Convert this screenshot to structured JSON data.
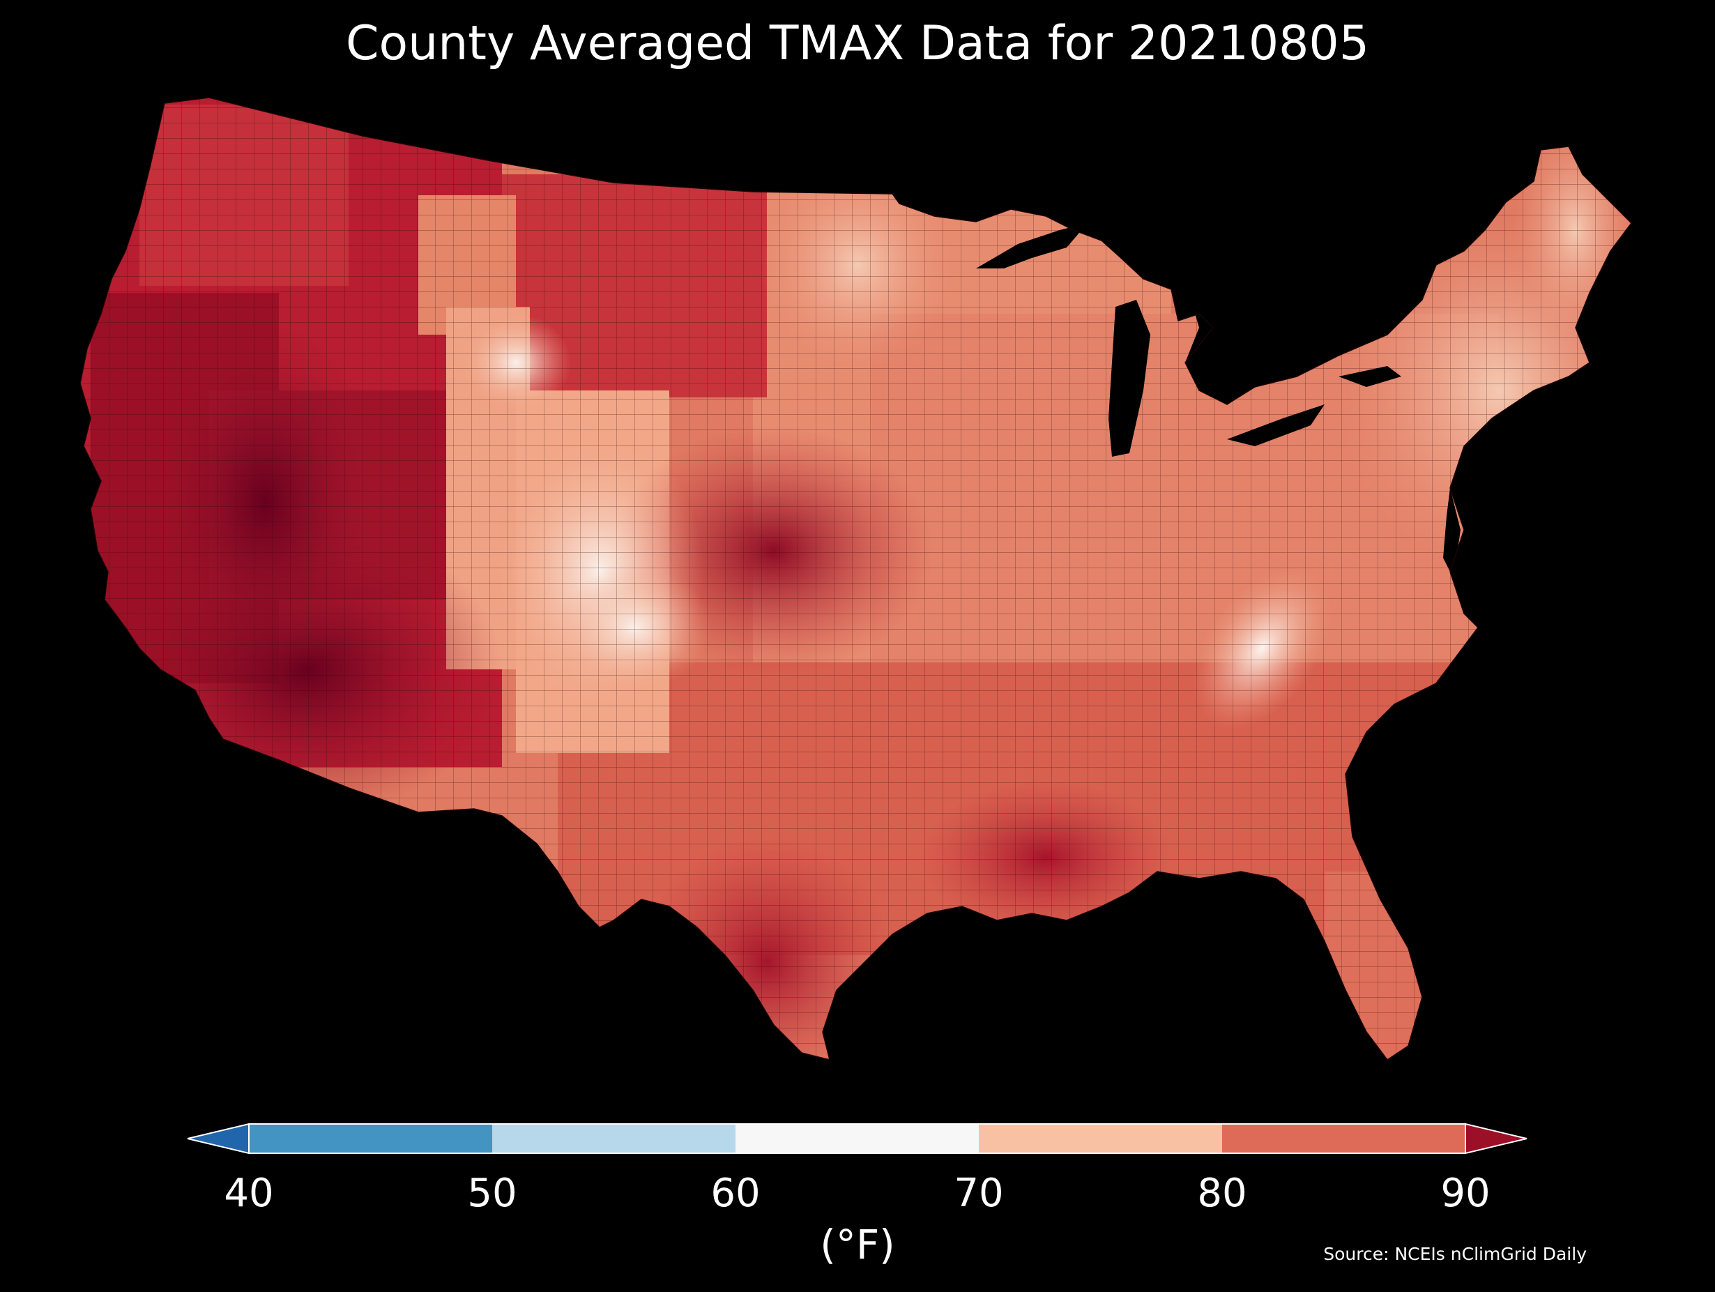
{
  "title": "County Averaged TMAX Data for 20210805",
  "colorbar": {
    "ticks": [
      "40",
      "50",
      "60",
      "70",
      "80",
      "90"
    ],
    "unit": "(°F)",
    "bins": [
      {
        "color": "#2166ac"
      },
      {
        "color": "#4393c3"
      },
      {
        "color": "#b7d7ea"
      },
      {
        "color": "#f7f7f7"
      },
      {
        "color": "#f9c1a4"
      },
      {
        "color": "#dd6b58"
      },
      {
        "color": "#9b1026"
      }
    ]
  },
  "source": "Source: NCEIs nClimGrid Daily",
  "map": {
    "region": "Contiguous United States",
    "colors": {
      "hot": "#8e0b25",
      "very_hot": "#67001f",
      "warm": "#c9383d",
      "mild_warm": "#e07a62",
      "mild": "#f2a788",
      "cool": "#f7e6dc",
      "water": "#000000"
    }
  }
}
